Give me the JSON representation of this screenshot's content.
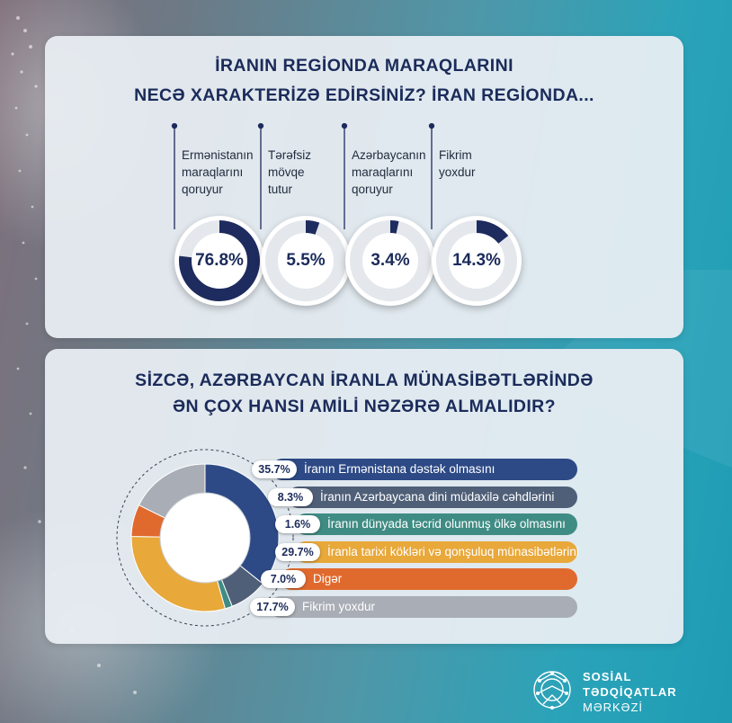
{
  "question1": {
    "title_line1": "İRANIN REGİONDA MARAQLARINI",
    "title_line2": "NECƏ XARAKTERİZƏ EDİRSİNİZ? İRAN REGİONDA...",
    "items": [
      {
        "label_lines": [
          "Ermənistanın",
          "maraqlarını",
          "qoruyur"
        ],
        "percent": "76.8%",
        "value": 76.8
      },
      {
        "label_lines": [
          "Tərəfsiz",
          "mövqe",
          "tutur"
        ],
        "percent": "5.5%",
        "value": 5.5
      },
      {
        "label_lines": [
          "Azərbaycanın",
          "maraqlarını",
          "qoruyur"
        ],
        "percent": "3.4%",
        "value": 3.4
      },
      {
        "label_lines": [
          "Fikrim",
          "yoxdur"
        ],
        "percent": "14.3%",
        "value": 14.3
      }
    ],
    "ring_color": "#1d2b5e"
  },
  "question2": {
    "title_line1": "SİZCƏ, AZƏRBAYCAN İRANLA MÜNASİBƏTLƏRİNDƏ",
    "title_line2": "ƏN ÇOX HANSI AMİLİ NƏZƏRƏ ALMALIDIR?"
  },
  "chart_data": {
    "type": "pie",
    "categories": [
      "İranın Ermənistana dəstək olmasını",
      "İranın Azərbaycana dini müdaxilə cəhdlərini",
      "İranın dünyada təcrid olunmuş ölkə olmasını",
      "İranla tarixi kökləri və qonşuluq münasibətlərini",
      "Digər",
      "Fikrim yoxdur"
    ],
    "values": [
      35.7,
      8.3,
      1.6,
      29.7,
      7.0,
      17.7
    ],
    "labels": [
      "35.7%",
      "8.3%",
      "1.6%",
      "29.7%",
      "7.0%",
      "17.7%"
    ],
    "colors": [
      "#2d4a86",
      "#4f5f78",
      "#3f8c84",
      "#e8a83a",
      "#e06a2e",
      "#a9adb5"
    ]
  },
  "logo": {
    "line1": "SOSİAL",
    "line2": "TƏDQİQATLAR",
    "line3": "MƏRKƏZİ",
    "brand_color": "#ffffff"
  }
}
